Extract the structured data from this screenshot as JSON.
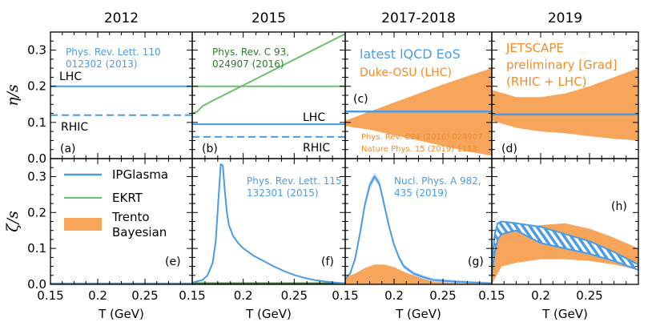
{
  "colors": {
    "ipglasma": "#4a9ce6",
    "ekrt": "#6dbf6d",
    "trento": "#f7a55a",
    "ekrt_text": "#2e7d2e",
    "axis": "#000000"
  },
  "chart_data": {
    "type": "line",
    "columns": [
      "2012",
      "2015",
      "2017-2018",
      "2019"
    ],
    "xlabel": "T (GeV)",
    "xlim": [
      0.15,
      0.3
    ],
    "xticks": [
      "0.15",
      "0.2",
      "0.25",
      "0.15",
      "0.2",
      "0.25",
      "0.15",
      "0.2",
      "0.25",
      "0.15",
      "0.2",
      "0.25"
    ],
    "top_row": {
      "ylabel": "η/s",
      "ylim": [
        0.0,
        0.35
      ],
      "yticks": [
        "0.0",
        "0.1",
        "0.2",
        "0.3"
      ]
    },
    "bottom_row": {
      "ylabel": "ζ/s",
      "ylim": [
        0.0,
        0.35
      ],
      "yticks": [
        "0.0",
        "0.1",
        "0.2",
        "0.3"
      ]
    },
    "legend": [
      "IPGlasma",
      "EKRT",
      "Trento",
      "Bayesian"
    ],
    "panels": {
      "a": {
        "label": "(a)",
        "ref": [
          "Phys. Rev. Lett. 110",
          "012302 (2013)"
        ],
        "lhc_label": "LHC",
        "rhic_label": "RHIC",
        "lhc": {
          "x": [
            0.15,
            0.3
          ],
          "y": [
            0.2,
            0.2
          ]
        },
        "rhic": {
          "x": [
            0.15,
            0.3
          ],
          "y": [
            0.12,
            0.12
          ]
        }
      },
      "b": {
        "label": "(b)",
        "ref": [
          "Phys. Rev. C 93,",
          "024907 (2016)"
        ],
        "lhc_label": "LHC",
        "rhic_label": "RHIC",
        "ekrt": {
          "x": [
            0.15,
            0.155,
            0.16,
            0.17,
            0.3
          ],
          "y": [
            0.125,
            0.13,
            0.145,
            0.16,
            0.345
          ]
        },
        "ekrt_flat": {
          "x": [
            0.15,
            0.3
          ],
          "y": [
            0.2,
            0.2
          ]
        },
        "lhc": {
          "x": [
            0.15,
            0.3
          ],
          "y": [
            0.095,
            0.095
          ]
        },
        "rhic": {
          "x": [
            0.15,
            0.3
          ],
          "y": [
            0.06,
            0.06
          ]
        }
      },
      "c": {
        "label": "(c)",
        "title": "latest lQCD EoS",
        "subtitle": "Duke-OSU (LHC)",
        "refs": [
          "Phys. Rev. C94 (2016) 024907",
          "Nature Phys. 15 (2019) 1113"
        ],
        "band": {
          "x": [
            0.15,
            0.175,
            0.2,
            0.225,
            0.25,
            0.275,
            0.3
          ],
          "upper": [
            0.105,
            0.13,
            0.155,
            0.18,
            0.205,
            0.228,
            0.25
          ],
          "lower": [
            0.09,
            0.08,
            0.065,
            0.05,
            0.035,
            0.02,
            0.008
          ]
        },
        "ipglasma": {
          "x": [
            0.15,
            0.3
          ],
          "y": [
            0.13,
            0.13
          ]
        }
      },
      "d": {
        "label": "(d)",
        "title_lines": [
          "JETSCAPE",
          "preliminary [Grad]",
          "(RHIC + LHC)"
        ],
        "band": {
          "x": [
            0.15,
            0.175,
            0.2,
            0.225,
            0.25,
            0.275,
            0.3
          ],
          "upper": [
            0.19,
            0.17,
            0.17,
            0.18,
            0.2,
            0.225,
            0.25
          ],
          "lower": [
            0.105,
            0.085,
            0.075,
            0.07,
            0.062,
            0.055,
            0.05
          ]
        },
        "ipglasma": {
          "x": [
            0.15,
            0.3
          ],
          "y": [
            0.122,
            0.122
          ]
        }
      },
      "e": {
        "label": "(e)",
        "ipglasma": {
          "x": [
            0.15,
            0.3
          ],
          "y": [
            0.002,
            0.002
          ]
        }
      },
      "f": {
        "label": "(f)",
        "ref": [
          "Phys. Rev. Lett. 115",
          "132301 (2015)"
        ],
        "ipglasma": {
          "x": [
            0.15,
            0.16,
            0.165,
            0.17,
            0.173,
            0.176,
            0.178,
            0.18,
            0.182,
            0.184,
            0.186,
            0.19,
            0.195,
            0.2,
            0.21,
            0.22,
            0.23,
            0.24,
            0.25,
            0.26,
            0.27,
            0.28,
            0.29,
            0.3
          ],
          "y": [
            0.005,
            0.012,
            0.025,
            0.06,
            0.12,
            0.25,
            0.335,
            0.33,
            0.26,
            0.2,
            0.165,
            0.135,
            0.115,
            0.1,
            0.08,
            0.065,
            0.05,
            0.037,
            0.026,
            0.018,
            0.012,
            0.008,
            0.005,
            0.003
          ]
        },
        "ekrt": {
          "x": [
            0.15,
            0.3
          ],
          "y": [
            0.001,
            0.001
          ]
        }
      },
      "g": {
        "label": "(g)",
        "ref": [
          "Nucl. Phys. A 982,",
          "435 (2019)"
        ],
        "ipglasma": {
          "x": [
            0.15,
            0.155,
            0.16,
            0.165,
            0.17,
            0.175,
            0.18,
            0.185,
            0.19,
            0.195,
            0.2,
            0.205,
            0.21,
            0.22,
            0.23,
            0.24,
            0.26,
            0.28,
            0.3
          ],
          "y": [
            0.015,
            0.03,
            0.07,
            0.14,
            0.22,
            0.275,
            0.3,
            0.28,
            0.22,
            0.16,
            0.11,
            0.075,
            0.05,
            0.03,
            0.02,
            0.012,
            0.008,
            0.005,
            0.003
          ],
          "upper": [
            0.017,
            0.034,
            0.078,
            0.15,
            0.232,
            0.287,
            0.31,
            0.29,
            0.23,
            0.168,
            0.117,
            0.081,
            0.056,
            0.035,
            0.025,
            0.017,
            0.012,
            0.009,
            0.006
          ],
          "lower": [
            0.013,
            0.026,
            0.062,
            0.13,
            0.208,
            0.263,
            0.29,
            0.27,
            0.21,
            0.152,
            0.103,
            0.069,
            0.044,
            0.025,
            0.015,
            0.007,
            0.004,
            0.002,
            0.001
          ]
        },
        "band": {
          "x": [
            0.15,
            0.16,
            0.17,
            0.18,
            0.19,
            0.2,
            0.21,
            0.22,
            0.24,
            0.26,
            0.28,
            0.3
          ],
          "upper": [
            0.02,
            0.03,
            0.045,
            0.055,
            0.055,
            0.048,
            0.035,
            0.025,
            0.012,
            0.006,
            0.004,
            0.002
          ],
          "lower": [
            0.0,
            0.0,
            0.0,
            0.0,
            0.0,
            0.0,
            0.0,
            0.0,
            0.0,
            0.0,
            0.0,
            0.0
          ]
        }
      },
      "h": {
        "label": "(h)",
        "band": {
          "x": [
            0.15,
            0.155,
            0.16,
            0.175,
            0.2,
            0.225,
            0.25,
            0.275,
            0.3
          ],
          "upper": [
            0.06,
            0.14,
            0.16,
            0.155,
            0.165,
            0.17,
            0.155,
            0.13,
            0.1
          ],
          "lower": [
            0.0,
            0.025,
            0.05,
            0.06,
            0.07,
            0.07,
            0.065,
            0.055,
            0.04
          ]
        },
        "ipglasma": {
          "x": [
            0.15,
            0.153,
            0.156,
            0.16,
            0.175,
            0.2,
            0.225,
            0.25,
            0.275,
            0.3
          ],
          "upper": [
            0.06,
            0.14,
            0.17,
            0.175,
            0.17,
            0.16,
            0.14,
            0.12,
            0.09,
            0.055
          ],
          "lower": [
            0.02,
            0.09,
            0.125,
            0.14,
            0.15,
            0.115,
            0.1,
            0.085,
            0.065,
            0.04
          ]
        }
      }
    }
  }
}
